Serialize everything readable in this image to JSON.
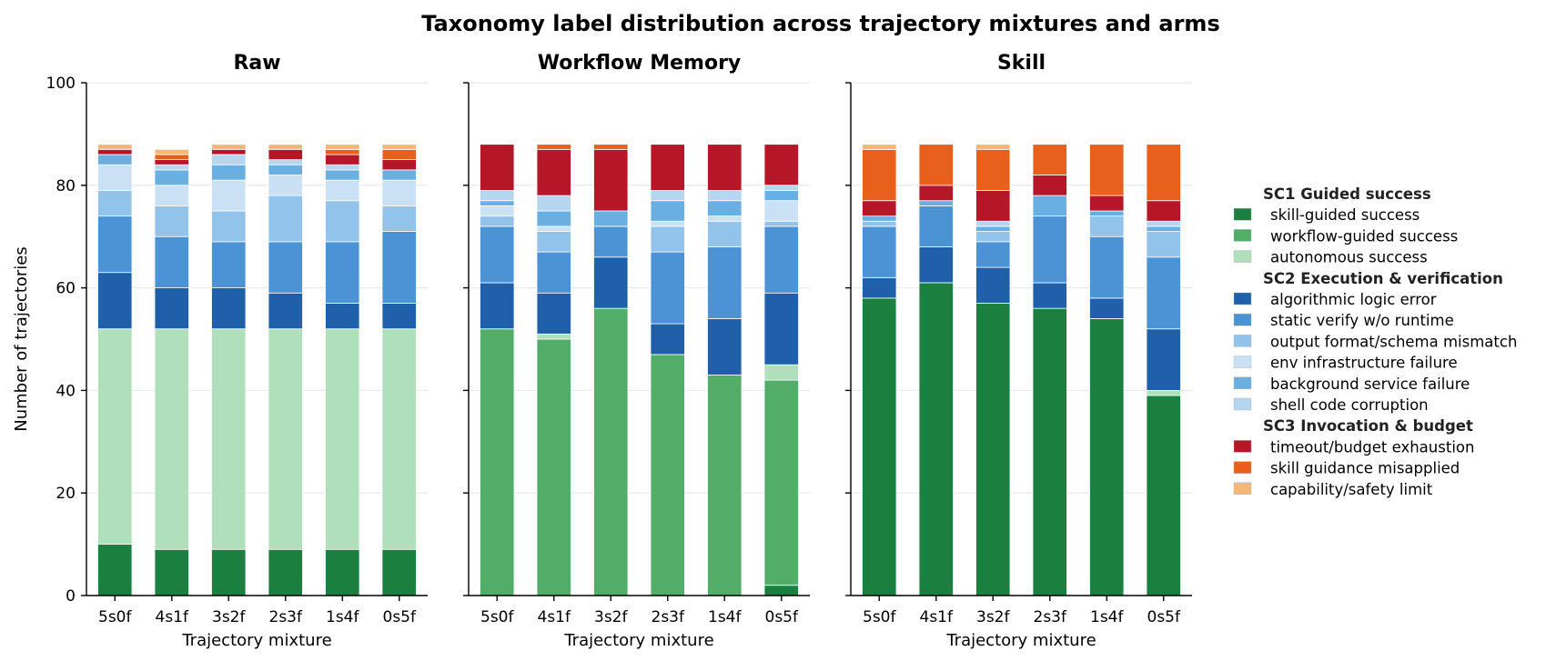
{
  "figure_title": "Taxonomy label distribution across trajectory mixtures and arms",
  "colors": {
    "skill_guided_success": "#1a7f3f",
    "workflow_guided_success": "#52ad68",
    "autonomous_success": "#b0dfbb",
    "algorithmic_logic_error": "#2060aa",
    "static_verify": "#4b93d5",
    "output_format": "#92c3ea",
    "env_infrastructure": "#c9e0f5",
    "background_service": "#6aafe2",
    "shell_code_corruption": "#b6d5f1",
    "timeout_budget": "#b51628",
    "skill_guidance_misapplied": "#e8601b",
    "capability_safety": "#f5b777"
  },
  "legend": [
    {
      "heading": "SC1  Guided success",
      "items": [
        {
          "key": "skill_guided_success",
          "label": "skill-guided success"
        },
        {
          "key": "workflow_guided_success",
          "label": "workflow-guided success"
        },
        {
          "key": "autonomous_success",
          "label": "autonomous success"
        }
      ]
    },
    {
      "heading": "SC2  Execution & verification",
      "items": [
        {
          "key": "algorithmic_logic_error",
          "label": "algorithmic logic error"
        },
        {
          "key": "static_verify",
          "label": "static verify w/o runtime"
        },
        {
          "key": "output_format",
          "label": "output format/schema mismatch"
        },
        {
          "key": "env_infrastructure",
          "label": "env infrastructure failure"
        },
        {
          "key": "background_service",
          "label": "background service failure"
        },
        {
          "key": "shell_code_corruption",
          "label": "shell code corruption"
        }
      ]
    },
    {
      "heading": "SC3  Invocation & budget",
      "items": [
        {
          "key": "timeout_budget",
          "label": "timeout/budget exhaustion"
        },
        {
          "key": "skill_guidance_misapplied",
          "label": "skill guidance misapplied"
        },
        {
          "key": "capability_safety",
          "label": "capability/safety limit"
        }
      ]
    }
  ],
  "chart_data": [
    {
      "type": "bar",
      "stacked": true,
      "title": "Raw",
      "xlabel": "Trajectory mixture",
      "ylabel": "Number of trajectories",
      "ylim": [
        0,
        100
      ],
      "yticks": [
        0,
        20,
        40,
        60,
        80,
        100
      ],
      "grid": true,
      "categories": [
        "5s0f",
        "4s1f",
        "3s2f",
        "2s3f",
        "1s4f",
        "0s5f"
      ],
      "series": [
        {
          "key": "skill_guided_success",
          "values": [
            10,
            9,
            9,
            9,
            9,
            9
          ]
        },
        {
          "key": "workflow_guided_success",
          "values": [
            0,
            0,
            0,
            0,
            0,
            0
          ]
        },
        {
          "key": "autonomous_success",
          "values": [
            42,
            43,
            43,
            43,
            43,
            43
          ]
        },
        {
          "key": "algorithmic_logic_error",
          "values": [
            11,
            8,
            8,
            7,
            5,
            5
          ]
        },
        {
          "key": "static_verify",
          "values": [
            11,
            10,
            9,
            10,
            12,
            14
          ]
        },
        {
          "key": "output_format",
          "values": [
            5,
            6,
            6,
            9,
            8,
            5
          ]
        },
        {
          "key": "env_infrastructure",
          "values": [
            5,
            4,
            6,
            4,
            4,
            5
          ]
        },
        {
          "key": "background_service",
          "values": [
            2,
            3,
            3,
            2,
            2,
            2
          ]
        },
        {
          "key": "shell_code_corruption",
          "values": [
            0,
            1,
            2,
            1,
            1,
            0
          ]
        },
        {
          "key": "timeout_budget",
          "values": [
            1,
            1,
            1,
            2,
            2,
            2
          ]
        },
        {
          "key": "skill_guidance_misapplied",
          "values": [
            0,
            1,
            0,
            0,
            1,
            2
          ]
        },
        {
          "key": "capability_safety",
          "values": [
            1,
            1,
            1,
            1,
            1,
            1
          ]
        }
      ]
    },
    {
      "type": "bar",
      "stacked": true,
      "title": "Workflow Memory",
      "xlabel": "Trajectory mixture",
      "ylabel": "",
      "ylim": [
        0,
        100
      ],
      "yticks": [
        0,
        20,
        40,
        60,
        80,
        100
      ],
      "grid": true,
      "categories": [
        "5s0f",
        "4s1f",
        "3s2f",
        "2s3f",
        "1s4f",
        "0s5f"
      ],
      "series": [
        {
          "key": "skill_guided_success",
          "values": [
            0,
            0,
            0,
            0,
            0,
            2
          ]
        },
        {
          "key": "workflow_guided_success",
          "values": [
            52,
            50,
            56,
            47,
            43,
            40
          ]
        },
        {
          "key": "autonomous_success",
          "values": [
            0,
            1,
            0,
            0,
            0,
            3
          ]
        },
        {
          "key": "algorithmic_logic_error",
          "values": [
            9,
            8,
            10,
            6,
            11,
            14
          ]
        },
        {
          "key": "static_verify",
          "values": [
            11,
            8,
            6,
            14,
            14,
            13
          ]
        },
        {
          "key": "output_format",
          "values": [
            2,
            4,
            0,
            5,
            5,
            1
          ]
        },
        {
          "key": "env_infrastructure",
          "values": [
            2,
            1,
            0,
            1,
            1,
            4
          ]
        },
        {
          "key": "background_service",
          "values": [
            1,
            3,
            3,
            4,
            3,
            2
          ]
        },
        {
          "key": "shell_code_corruption",
          "values": [
            2,
            3,
            0,
            2,
            2,
            1
          ]
        },
        {
          "key": "timeout_budget",
          "values": [
            9,
            9,
            12,
            9,
            9,
            8
          ]
        },
        {
          "key": "skill_guidance_misapplied",
          "values": [
            0,
            1,
            1,
            0,
            0,
            0
          ]
        },
        {
          "key": "capability_safety",
          "values": [
            0,
            0,
            0,
            0,
            0,
            0
          ]
        }
      ]
    },
    {
      "type": "bar",
      "stacked": true,
      "title": "Skill",
      "xlabel": "Trajectory mixture",
      "ylabel": "",
      "ylim": [
        0,
        100
      ],
      "yticks": [
        0,
        20,
        40,
        60,
        80,
        100
      ],
      "grid": true,
      "categories": [
        "5s0f",
        "4s1f",
        "3s2f",
        "2s3f",
        "1s4f",
        "0s5f"
      ],
      "series": [
        {
          "key": "skill_guided_success",
          "values": [
            58,
            61,
            57,
            56,
            54,
            39
          ]
        },
        {
          "key": "workflow_guided_success",
          "values": [
            0,
            0,
            0,
            0,
            0,
            0
          ]
        },
        {
          "key": "autonomous_success",
          "values": [
            0,
            0,
            0,
            0,
            0,
            1
          ]
        },
        {
          "key": "algorithmic_logic_error",
          "values": [
            4,
            7,
            7,
            5,
            4,
            12
          ]
        },
        {
          "key": "static_verify",
          "values": [
            10,
            8,
            5,
            13,
            12,
            14
          ]
        },
        {
          "key": "output_format",
          "values": [
            1,
            0,
            2,
            0,
            4,
            5
          ]
        },
        {
          "key": "env_infrastructure",
          "values": [
            0,
            0,
            0,
            0,
            0,
            0
          ]
        },
        {
          "key": "background_service",
          "values": [
            1,
            1,
            1,
            4,
            1,
            1
          ]
        },
        {
          "key": "shell_code_corruption",
          "values": [
            0,
            0,
            1,
            0,
            0,
            1
          ]
        },
        {
          "key": "timeout_budget",
          "values": [
            3,
            3,
            6,
            4,
            3,
            4
          ]
        },
        {
          "key": "skill_guidance_misapplied",
          "values": [
            10,
            8,
            8,
            6,
            10,
            11
          ]
        },
        {
          "key": "capability_safety",
          "values": [
            1,
            0,
            1,
            0,
            0,
            0
          ]
        }
      ]
    }
  ]
}
